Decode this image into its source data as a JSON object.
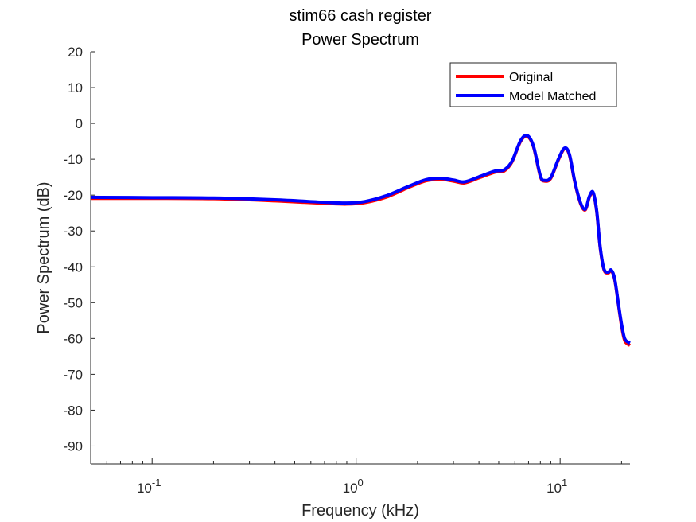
{
  "chart_data": {
    "type": "line",
    "title": "stim66 cash register",
    "subtitle": "Power Spectrum",
    "xlabel": "Frequency (kHz)",
    "ylabel": "Power Spectrum (dB)",
    "x_scale": "log",
    "xlim": [
      0.05,
      22
    ],
    "ylim": [
      -95,
      20
    ],
    "yticks": [
      20,
      10,
      0,
      -10,
      -20,
      -30,
      -40,
      -50,
      -60,
      -70,
      -80,
      -90
    ],
    "xticks": [
      {
        "value": 0.1,
        "base": "10",
        "exp": "-1"
      },
      {
        "value": 1,
        "base": "10",
        "exp": "0"
      },
      {
        "value": 10,
        "base": "10",
        "exp": "1"
      }
    ],
    "legend_position": "top-right",
    "grid": false,
    "series": [
      {
        "name": "Original",
        "color": "#ff0000",
        "points": [
          [
            0.05,
            -20.9
          ],
          [
            0.1,
            -20.9
          ],
          [
            0.2,
            -21.0
          ],
          [
            0.4,
            -21.6
          ],
          [
            0.7,
            -22.3
          ],
          [
            0.9,
            -22.5
          ],
          [
            1.1,
            -22.1
          ],
          [
            1.4,
            -20.6
          ],
          [
            1.8,
            -17.9
          ],
          [
            2.2,
            -16.0
          ],
          [
            2.6,
            -15.6
          ],
          [
            3.0,
            -16.1
          ],
          [
            3.4,
            -16.6
          ],
          [
            4.0,
            -15.2
          ],
          [
            4.8,
            -13.6
          ],
          [
            5.3,
            -13.3
          ],
          [
            5.8,
            -10.8
          ],
          [
            6.4,
            -5.0
          ],
          [
            6.9,
            -3.6
          ],
          [
            7.4,
            -6.5
          ],
          [
            8.0,
            -14.8
          ],
          [
            8.4,
            -16.1
          ],
          [
            9.0,
            -15.3
          ],
          [
            9.8,
            -10.2
          ],
          [
            10.5,
            -7.1
          ],
          [
            11.1,
            -8.8
          ],
          [
            11.8,
            -16.4
          ],
          [
            12.6,
            -22.4
          ],
          [
            13.3,
            -24.1
          ],
          [
            13.9,
            -20.6
          ],
          [
            14.5,
            -19.4
          ],
          [
            15.1,
            -24.5
          ],
          [
            15.7,
            -34.5
          ],
          [
            16.4,
            -40.8
          ],
          [
            17.2,
            -41.7
          ],
          [
            17.8,
            -41.1
          ],
          [
            18.5,
            -43.5
          ],
          [
            19.3,
            -50.5
          ],
          [
            20.0,
            -56.5
          ],
          [
            20.7,
            -60.5
          ],
          [
            21.5,
            -61.6
          ],
          [
            22.0,
            -61.9
          ]
        ]
      },
      {
        "name": "Model Matched",
        "color": "#0000ff",
        "points": [
          [
            0.05,
            -20.6
          ],
          [
            0.1,
            -20.7
          ],
          [
            0.2,
            -20.8
          ],
          [
            0.4,
            -21.3
          ],
          [
            0.7,
            -22.0
          ],
          [
            0.9,
            -22.2
          ],
          [
            1.1,
            -21.8
          ],
          [
            1.4,
            -20.2
          ],
          [
            1.8,
            -17.6
          ],
          [
            2.2,
            -15.7
          ],
          [
            2.6,
            -15.3
          ],
          [
            3.0,
            -15.8
          ],
          [
            3.4,
            -16.3
          ],
          [
            4.0,
            -14.9
          ],
          [
            4.8,
            -13.3
          ],
          [
            5.3,
            -13.0
          ],
          [
            5.8,
            -10.6
          ],
          [
            6.4,
            -4.8
          ],
          [
            6.9,
            -3.4
          ],
          [
            7.4,
            -6.3
          ],
          [
            8.0,
            -14.6
          ],
          [
            8.4,
            -15.9
          ],
          [
            9.0,
            -15.1
          ],
          [
            9.8,
            -10.0
          ],
          [
            10.5,
            -6.9
          ],
          [
            11.1,
            -8.6
          ],
          [
            11.8,
            -16.2
          ],
          [
            12.6,
            -22.2
          ],
          [
            13.3,
            -23.9
          ],
          [
            13.9,
            -20.4
          ],
          [
            14.5,
            -19.2
          ],
          [
            15.1,
            -24.3
          ],
          [
            15.7,
            -34.3
          ],
          [
            16.4,
            -40.6
          ],
          [
            17.2,
            -41.5
          ],
          [
            17.8,
            -40.9
          ],
          [
            18.5,
            -43.3
          ],
          [
            19.3,
            -50.3
          ],
          [
            20.0,
            -56.0
          ],
          [
            20.7,
            -60.0
          ],
          [
            21.5,
            -61.0
          ],
          [
            22.0,
            -61.3
          ]
        ]
      }
    ]
  }
}
